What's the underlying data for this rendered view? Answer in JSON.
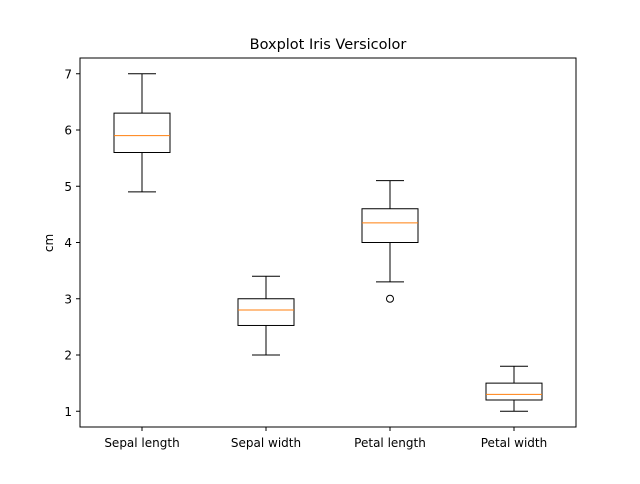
{
  "chart_data": {
    "type": "box",
    "title": "Boxplot Iris Versicolor",
    "xlabel": "",
    "ylabel": "cm",
    "ylim": [
      0.72,
      7.28
    ],
    "yticks": [
      1,
      2,
      3,
      4,
      5,
      6,
      7
    ],
    "grid": false,
    "categories": [
      "Sepal length",
      "Sepal width",
      "Petal length",
      "Petal width"
    ],
    "boxes": [
      {
        "label": "Sepal length",
        "whisker_low": 4.9,
        "q1": 5.6,
        "median": 5.9,
        "q3": 6.3,
        "whisker_high": 7.0,
        "outliers": []
      },
      {
        "label": "Sepal width",
        "whisker_low": 2.0,
        "q1": 2.525,
        "median": 2.8,
        "q3": 3.0,
        "whisker_high": 3.4,
        "outliers": []
      },
      {
        "label": "Petal length",
        "whisker_low": 3.3,
        "q1": 4.0,
        "median": 4.35,
        "q3": 4.6,
        "whisker_high": 5.1,
        "outliers": [
          3.0
        ]
      },
      {
        "label": "Petal width",
        "whisker_low": 1.0,
        "q1": 1.2,
        "median": 1.3,
        "q3": 1.5,
        "whisker_high": 1.8,
        "outliers": []
      }
    ],
    "colors": {
      "box": "#000000",
      "median": "#ff7f0e",
      "whisker": "#000000",
      "outlier_edge": "#000000"
    }
  }
}
